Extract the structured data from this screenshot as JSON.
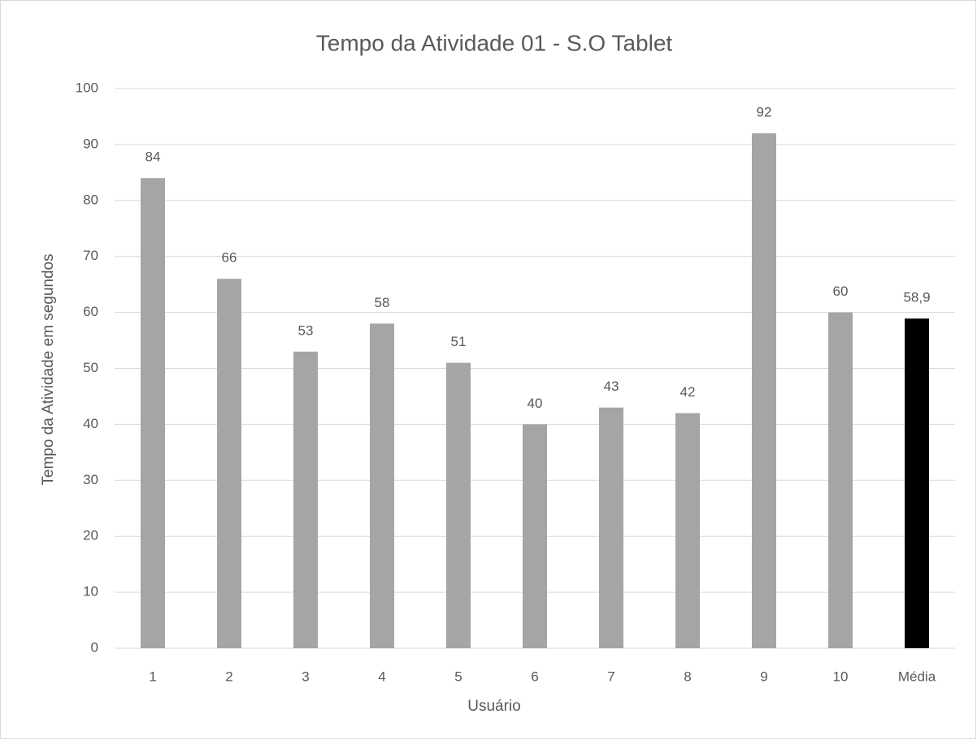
{
  "chart_data": {
    "type": "bar",
    "title": "Tempo da Atividade 01 - S.O Tablet",
    "x_label": "Usuário",
    "y_label": "Tempo da Atividade em segundos",
    "categories": [
      "1",
      "2",
      "3",
      "4",
      "5",
      "6",
      "7",
      "8",
      "9",
      "10",
      "Média"
    ],
    "values": [
      84,
      66,
      53,
      58,
      51,
      40,
      43,
      42,
      92,
      60,
      58.9
    ],
    "value_labels": [
      "84",
      "66",
      "53",
      "58",
      "51",
      "40",
      "43",
      "42",
      "92",
      "60",
      "58,9"
    ],
    "colors": [
      "#a5a5a5",
      "#a5a5a5",
      "#a5a5a5",
      "#a5a5a5",
      "#a5a5a5",
      "#a5a5a5",
      "#a5a5a5",
      "#a5a5a5",
      "#a5a5a5",
      "#a5a5a5",
      "#000000"
    ],
    "ylim": [
      0,
      100
    ],
    "yticks": [
      0,
      10,
      20,
      30,
      40,
      50,
      60,
      70,
      80,
      90,
      100
    ],
    "grid": true
  }
}
